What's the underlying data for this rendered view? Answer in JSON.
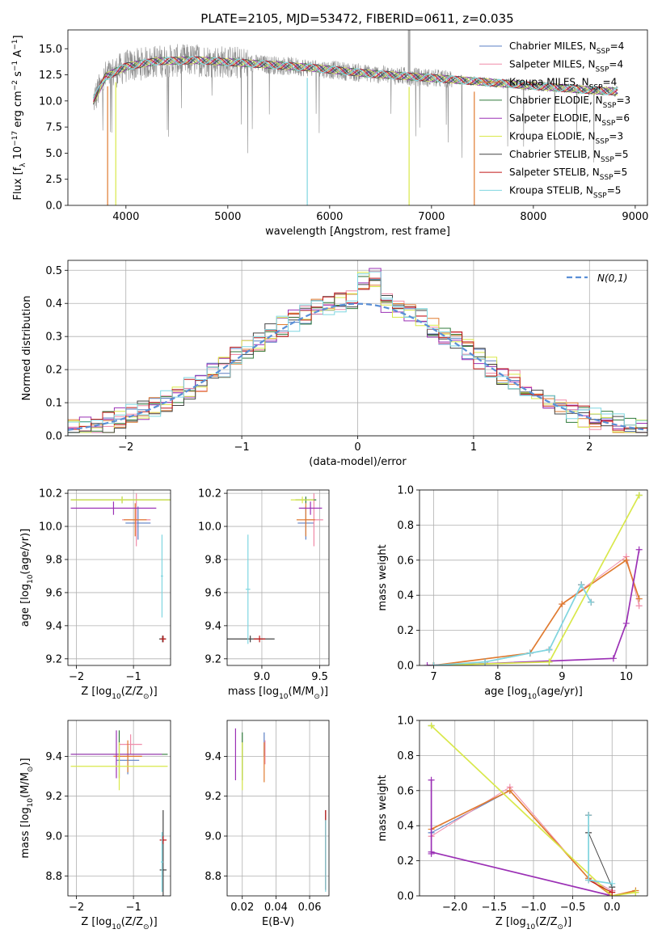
{
  "figure": {
    "title": "PLATE=2105, MJD=53472, FIBERID=0611, z=0.035"
  },
  "models": [
    {
      "label": "Chabrier MILES, N_SSP=4",
      "color": "#5b7fc4",
      "weight": 0.7
    },
    {
      "label": "Salpeter MILES, N_SSP=4",
      "color": "#f08aa8",
      "weight": 0.7
    },
    {
      "label": "Kroupa MILES, N_SSP=4",
      "color": "#e07b30",
      "weight": 1.2
    },
    {
      "label": "Chabrier ELODIE, N_SSP=3",
      "color": "#2f7a3a",
      "weight": 0.7
    },
    {
      "label": "Salpeter ELODIE, N_SSP=6",
      "color": "#9b30b5",
      "weight": 1.2
    },
    {
      "label": "Kroupa ELODIE, N_SSP=3",
      "color": "#d9e84a",
      "weight": 1.2
    },
    {
      "label": "Chabrier STELIB, N_SSP=5",
      "color": "#444444",
      "weight": 0.7
    },
    {
      "label": "Salpeter STELIB, N_SSP=5",
      "color": "#c01818",
      "weight": 0.8
    },
    {
      "label": "Kroupa STELIB, N_SSP=5",
      "color": "#7fd6e0",
      "weight": 1.2
    }
  ],
  "chart_data": [
    {
      "id": "spectrum",
      "type": "line",
      "title": "PLATE=2105, MJD=53472, FIBERID=0611, z=0.035",
      "xlabel": "wavelength [Angstrom, rest frame]",
      "ylabel": "Flux [f_λ 10^-17 erg cm^-2 s^-1 A^-1]",
      "xlim": [
        3430,
        9120
      ],
      "ylim": [
        0,
        16.8
      ],
      "xticks": [
        4000,
        5000,
        6000,
        7000,
        8000,
        9000
      ],
      "yticks": [
        0.0,
        2.5,
        5.0,
        7.5,
        10.0,
        12.5,
        15.0
      ],
      "legend": "top-right",
      "data_color": "#8c8c8c",
      "data_range": [
        3680,
        8830
      ],
      "continuum": {
        "x": [
          3680,
          3800,
          4000,
          4300,
          4700,
          5200,
          5800,
          6400,
          7000,
          7400,
          7800,
          8200,
          8600,
          8830
        ],
        "y": [
          10.0,
          12.3,
          13.3,
          13.8,
          13.9,
          13.6,
          13.2,
          12.6,
          12.2,
          11.9,
          11.6,
          11.3,
          11.0,
          10.9
        ]
      },
      "model_dips": [
        {
          "x": 3820,
          "y": 0
        },
        {
          "x": 3900,
          "y": 0
        },
        {
          "x": 5780,
          "y": 0
        },
        {
          "x": 6780,
          "y": 0
        },
        {
          "x": 7420,
          "y": 0
        }
      ],
      "data_spike": {
        "x": 6780,
        "y": 16.8
      }
    },
    {
      "id": "residuals",
      "type": "histogram",
      "xlabel": "(data-model)/error",
      "ylabel": "Normed distribution",
      "xlim": [
        -2.5,
        2.5
      ],
      "ylim": [
        0,
        0.53
      ],
      "xticks": [
        -2,
        -1,
        0,
        1,
        2
      ],
      "yticks": [
        0.0,
        0.1,
        0.2,
        0.3,
        0.4,
        0.5
      ],
      "legend": "top-right",
      "reference_label": "N(0,1)",
      "reference_color": "#5a8fd6",
      "bin_width": 0.1,
      "bin_start": -2.5
    },
    {
      "id": "age-vs-Z",
      "type": "scatter",
      "xlabel": "Z [log10(Z/Z_sun)]",
      "ylabel": "age [log10(age/yr)]",
      "xlim": [
        -2.15,
        -0.35
      ],
      "ylim": [
        9.16,
        10.22
      ],
      "xticks": [
        -2,
        -1
      ],
      "yticks": [
        9.2,
        9.4,
        9.6,
        9.8,
        10.0,
        10.2
      ],
      "points": [
        {
          "m": 0,
          "x": -0.92,
          "xerr": 0.22,
          "y": 10.02,
          "yerr": 0.1
        },
        {
          "m": 1,
          "x": -0.95,
          "xerr": 0.25,
          "y": 10.04,
          "yerr": 0.16
        },
        {
          "m": 2,
          "x": -0.97,
          "xerr": 0.2,
          "y": 10.04,
          "yerr": 0.1
        },
        {
          "m": 3,
          "x": -1.2,
          "xerr": 0.9,
          "y": 10.16,
          "yerr": 0.02
        },
        {
          "m": 4,
          "x": -1.35,
          "xerr": 0.75,
          "y": 10.11,
          "yerr": 0.04
        },
        {
          "m": 5,
          "x": -1.2,
          "xerr": 0.9,
          "y": 10.16,
          "yerr": 0.02
        },
        {
          "m": 6,
          "x": -0.49,
          "xerr": 0.06,
          "y": 9.32,
          "yerr": 0.02
        },
        {
          "m": 7,
          "x": -0.48,
          "xerr": 0.05,
          "y": 9.32,
          "yerr": 0.02
        },
        {
          "m": 8,
          "x": -0.5,
          "xerr": 0.02,
          "y": 9.7,
          "yerr": 0.25
        }
      ]
    },
    {
      "id": "age-vs-mass",
      "type": "scatter",
      "xlabel": "mass [log10(M/M_sun)]",
      "ylabel": "",
      "xlim": [
        8.7,
        9.58
      ],
      "ylim": [
        9.16,
        10.22
      ],
      "xticks": [
        9.0,
        9.5
      ],
      "yticks": [
        9.2,
        9.4,
        9.6,
        9.8,
        10.0,
        10.2
      ],
      "points": [
        {
          "m": 0,
          "x": 9.38,
          "xerr": 0.07,
          "y": 10.02,
          "yerr": 0.1
        },
        {
          "m": 1,
          "x": 9.45,
          "xerr": 0.08,
          "y": 10.04,
          "yerr": 0.16
        },
        {
          "m": 2,
          "x": 9.38,
          "xerr": 0.08,
          "y": 10.04,
          "yerr": 0.1
        },
        {
          "m": 3,
          "x": 9.38,
          "xerr": 0.09,
          "y": 10.16,
          "yerr": 0.02
        },
        {
          "m": 4,
          "x": 9.42,
          "xerr": 0.1,
          "y": 10.11,
          "yerr": 0.04
        },
        {
          "m": 5,
          "x": 9.35,
          "xerr": 0.1,
          "y": 10.16,
          "yerr": 0.02
        },
        {
          "m": 6,
          "x": 8.9,
          "xerr": 0.21,
          "y": 9.32,
          "yerr": 0.02
        },
        {
          "m": 7,
          "x": 8.98,
          "xerr": 0.05,
          "y": 9.32,
          "yerr": 0.02
        },
        {
          "m": 8,
          "x": 8.88,
          "xerr": 0.02,
          "y": 9.62,
          "yerr": 0.33
        }
      ]
    },
    {
      "id": "massweight-vs-age",
      "type": "line",
      "xlabel": "age [log10(age/yr)]",
      "ylabel": "mass weight",
      "xlim": [
        6.78,
        10.33
      ],
      "ylim": [
        0,
        1.0
      ],
      "xticks": [
        7,
        8,
        9,
        10
      ],
      "yticks": [
        0.0,
        0.2,
        0.4,
        0.6,
        0.8,
        1.0
      ],
      "series": [
        {
          "m": 0,
          "x": [
            7.0,
            8.5,
            9.0,
            10.0,
            10.2
          ],
          "y": [
            0.0,
            0.07,
            0.35,
            0.6,
            0.38
          ]
        },
        {
          "m": 1,
          "x": [
            7.0,
            8.5,
            9.0,
            10.0,
            10.2
          ],
          "y": [
            0.0,
            0.07,
            0.35,
            0.62,
            0.34
          ]
        },
        {
          "m": 2,
          "x": [
            7.0,
            8.5,
            9.0,
            10.0,
            10.2
          ],
          "y": [
            0.0,
            0.07,
            0.35,
            0.6,
            0.38
          ]
        },
        {
          "m": 3,
          "x": [
            7.0,
            8.8,
            10.2
          ],
          "y": [
            0.0,
            0.02,
            0.97
          ]
        },
        {
          "m": 4,
          "x": [
            6.9,
            7.8,
            9.8,
            10.0,
            10.2
          ],
          "y": [
            0.0,
            0.01,
            0.04,
            0.24,
            0.66
          ]
        },
        {
          "m": 5,
          "x": [
            7.0,
            8.8,
            10.2
          ],
          "y": [
            0.0,
            0.02,
            0.97
          ]
        },
        {
          "m": 6,
          "x": [
            7.0,
            7.8,
            8.5,
            8.8,
            9.3,
            9.45
          ],
          "y": [
            0.0,
            0.02,
            0.07,
            0.09,
            0.46,
            0.36
          ]
        },
        {
          "m": 7,
          "x": [
            7.0,
            7.8,
            8.5,
            8.8,
            9.3,
            9.45
          ],
          "y": [
            0.0,
            0.02,
            0.07,
            0.09,
            0.46,
            0.36
          ]
        },
        {
          "m": 8,
          "x": [
            7.0,
            7.8,
            8.5,
            8.8,
            9.3,
            9.45
          ],
          "y": [
            0.0,
            0.02,
            0.07,
            0.09,
            0.46,
            0.36
          ]
        }
      ]
    },
    {
      "id": "mass-vs-Z",
      "type": "scatter",
      "xlabel": "Z [log10(Z/Z_sun)]",
      "ylabel": "mass [log10(M/M_sun)]",
      "xlim": [
        -2.15,
        -0.35
      ],
      "ylim": [
        8.7,
        9.58
      ],
      "xticks": [
        -2,
        -1
      ],
      "yticks": [
        8.8,
        9.0,
        9.2,
        9.4
      ],
      "points": [
        {
          "m": 0,
          "x": -1.1,
          "xerr": 0.2,
          "y": 9.38,
          "yerr": 0.07
        },
        {
          "m": 1,
          "x": -1.05,
          "xerr": 0.2,
          "y": 9.46,
          "yerr": 0.05
        },
        {
          "m": 2,
          "x": -1.1,
          "xerr": 0.25,
          "y": 9.4,
          "yerr": 0.08
        },
        {
          "m": 3,
          "x": -1.25,
          "xerr": 0.85,
          "y": 9.41,
          "yerr": 0.12
        },
        {
          "m": 4,
          "x": -1.3,
          "xerr": 0.8,
          "y": 9.41,
          "yerr": 0.12
        },
        {
          "m": 5,
          "x": -1.25,
          "xerr": 0.85,
          "y": 9.35,
          "yerr": 0.12
        },
        {
          "m": 6,
          "x": -0.48,
          "xerr": 0.06,
          "y": 8.83,
          "yerr": 0.3
        },
        {
          "m": 7,
          "x": -0.48,
          "xerr": 0.06,
          "y": 8.98,
          "yerr": 0.02
        },
        {
          "m": 8,
          "x": -0.5,
          "xerr": 0.02,
          "y": 8.87,
          "yerr": 0.15
        }
      ]
    },
    {
      "id": "mass-vs-EBV",
      "type": "scatter",
      "xlabel": "E(B-V)",
      "ylabel": "",
      "xlim": [
        0.011,
        0.0715
      ],
      "ylim": [
        8.7,
        9.58
      ],
      "xticks": [
        0.02,
        0.04,
        0.06
      ],
      "yticks": [
        8.8,
        9.0,
        9.2,
        9.4
      ],
      "points": [
        {
          "m": 0,
          "x": 0.033,
          "xerr": 0,
          "y": 9.46,
          "yerr": 0.06
        },
        {
          "m": 1,
          "x": 0.0335,
          "xerr": 0,
          "y": 9.42,
          "yerr": 0.06
        },
        {
          "m": 2,
          "x": 0.033,
          "xerr": 0,
          "y": 9.37,
          "yerr": 0.1
        },
        {
          "m": 3,
          "x": 0.02,
          "xerr": 0,
          "y": 9.4,
          "yerr": 0.12
        },
        {
          "m": 4,
          "x": 0.016,
          "xerr": 0,
          "y": 9.41,
          "yerr": 0.13
        },
        {
          "m": 5,
          "x": 0.02,
          "xerr": 0,
          "y": 9.35,
          "yerr": 0.12
        },
        {
          "m": 6,
          "x": 0.0695,
          "xerr": 0,
          "y": 8.93,
          "yerr": 0.2
        },
        {
          "m": 7,
          "x": 0.0695,
          "xerr": 0,
          "y": 8.93,
          "yerr": 0.2
        },
        {
          "m": 8,
          "x": 0.0695,
          "xerr": 0,
          "y": 8.9,
          "yerr": 0.18
        }
      ]
    },
    {
      "id": "massweight-vs-Z",
      "type": "line",
      "xlabel": "Z [log10(Z/Z_sun)]",
      "ylabel": "mass weight",
      "xlim": [
        -2.45,
        0.45
      ],
      "ylim": [
        0,
        1.0
      ],
      "xticks": [
        -2.0,
        -1.5,
        -1.0,
        -0.5,
        0.0
      ],
      "yticks": [
        0.0,
        0.2,
        0.4,
        0.6,
        0.8,
        1.0
      ],
      "series": [
        {
          "m": 0,
          "x": [
            -2.3,
            -1.3,
            -0.3,
            0.0
          ],
          "y": [
            0.36,
            0.6,
            0.1,
            0.03
          ]
        },
        {
          "m": 1,
          "x": [
            -2.3,
            -1.3,
            -0.3,
            0.0
          ],
          "y": [
            0.34,
            0.62,
            0.1,
            0.03
          ]
        },
        {
          "m": 2,
          "x": [
            -2.3,
            -1.3,
            -0.3,
            0.0,
            0.3
          ],
          "y": [
            0.38,
            0.6,
            0.1,
            0.0,
            0.03
          ]
        },
        {
          "m": 3,
          "x": [
            -2.3,
            0.0,
            0.3
          ],
          "y": [
            0.97,
            0.0,
            0.02
          ]
        },
        {
          "m": 4,
          "x": [
            -2.3,
            -2.3,
            -2.3,
            0.0
          ],
          "y": [
            0.66,
            0.24,
            0.25,
            0.0
          ]
        },
        {
          "m": 5,
          "x": [
            -2.3,
            0.0,
            0.3
          ],
          "y": [
            0.97,
            0.0,
            0.02
          ]
        },
        {
          "m": 6,
          "x": [
            -0.3,
            -0.3,
            0.0
          ],
          "y": [
            0.46,
            0.36,
            0.05
          ]
        },
        {
          "m": 7,
          "x": [
            -0.3,
            -0.3,
            0.0
          ],
          "y": [
            0.46,
            0.09,
            0.02
          ]
        },
        {
          "m": 8,
          "x": [
            -0.3,
            -0.3,
            0.0
          ],
          "y": [
            0.46,
            0.09,
            0.07
          ]
        }
      ]
    }
  ]
}
